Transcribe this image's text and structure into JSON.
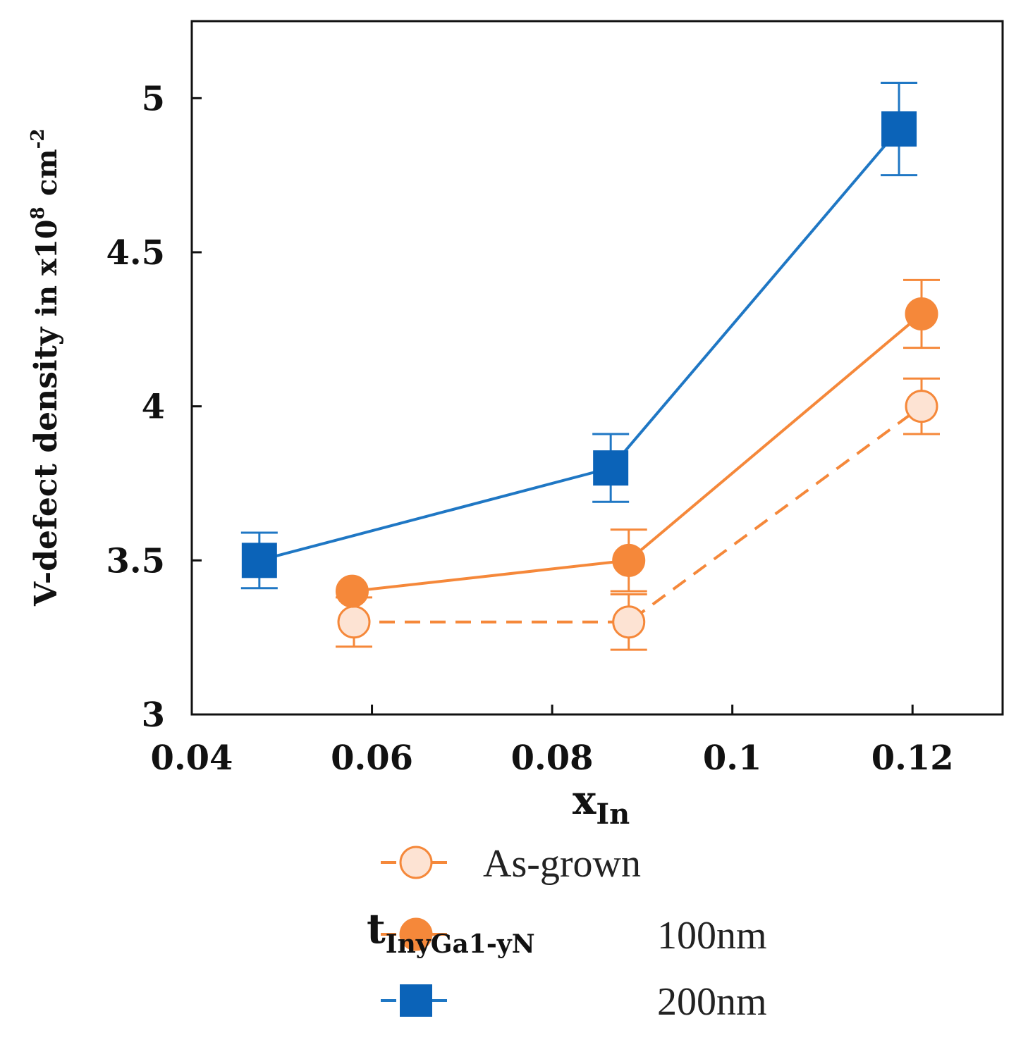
{
  "chart_data": {
    "type": "line",
    "title": "",
    "xlabel": {
      "main": "x",
      "sub": "In"
    },
    "ylabel": {
      "main": "V-defect density",
      "unit_prefix": "in x10",
      "exponent": "8",
      "unit": "cm",
      "unit_exponent": "-2"
    },
    "xlim": [
      0.04,
      0.13
    ],
    "ylim": [
      3,
      5.25
    ],
    "x_ticks": [
      0.04,
      0.06,
      0.08,
      0.1,
      0.12
    ],
    "x_tick_labels": [
      "0.04",
      "0.06",
      "0.08",
      "0.1",
      "0.12"
    ],
    "y_ticks": [
      3,
      3.5,
      4,
      4.5,
      5
    ],
    "y_tick_labels": [
      "3",
      "3.5",
      "4",
      "4.5",
      "5"
    ],
    "grid": false,
    "legend_position": "bottom",
    "legend_group_label": {
      "main": "t",
      "sub": "InyGa1-yN"
    },
    "series": [
      {
        "name": "As-grown",
        "marker": "open-circle",
        "line": "dashed",
        "color": "#f5883a",
        "fill": "#fde3d3",
        "x": [
          0.058,
          0.0885,
          0.121
        ],
        "values": [
          3.3,
          3.3,
          4.0
        ],
        "error": [
          0.08,
          0.09,
          0.09
        ]
      },
      {
        "name": "100nm",
        "marker": "filled-circle",
        "line": "solid",
        "color": "#f5883a",
        "fill": "#f5883a",
        "x": [
          0.0578,
          0.0885,
          0.121
        ],
        "values": [
          3.4,
          3.5,
          4.3
        ],
        "error": [
          0.0,
          0.1,
          0.11
        ]
      },
      {
        "name": "200nm",
        "marker": "filled-square",
        "line": "solid",
        "color": "#1f77c4",
        "fill": "#0b63b8",
        "x": [
          0.0475,
          0.0865,
          0.1185
        ],
        "values": [
          3.5,
          3.8,
          4.9
        ],
        "error": [
          0.09,
          0.11,
          0.15
        ]
      }
    ]
  }
}
